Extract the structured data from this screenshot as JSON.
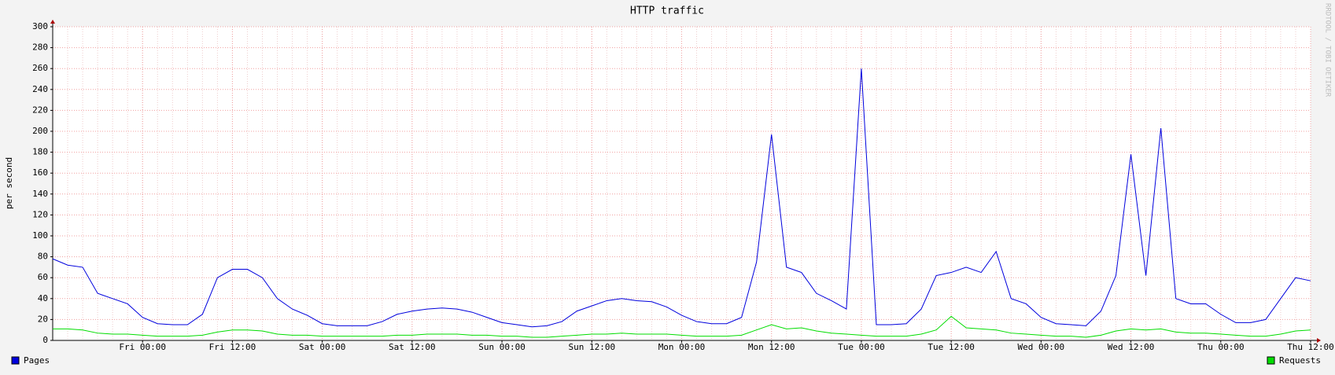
{
  "chart_data": {
    "type": "line",
    "title": "HTTP traffic",
    "y_label": "per second",
    "watermark": "RRDTOOL / TOBI OETIKER",
    "xlim": [
      0,
      84
    ],
    "xticks": [
      {
        "value": 6,
        "label": "Fri 00:00"
      },
      {
        "value": 12,
        "label": "Fri 12:00"
      },
      {
        "value": 18,
        "label": "Sat 00:00"
      },
      {
        "value": 24,
        "label": "Sat 12:00"
      },
      {
        "value": 30,
        "label": "Sun 00:00"
      },
      {
        "value": 36,
        "label": "Sun 12:00"
      },
      {
        "value": 42,
        "label": "Mon 00:00"
      },
      {
        "value": 48,
        "label": "Mon 12:00"
      },
      {
        "value": 54,
        "label": "Tue 00:00"
      },
      {
        "value": 60,
        "label": "Tue 12:00"
      },
      {
        "value": 66,
        "label": "Wed 00:00"
      },
      {
        "value": 72,
        "label": "Wed 12:00"
      },
      {
        "value": 78,
        "label": "Thu 00:00"
      },
      {
        "value": 84,
        "label": "Thu 12:00"
      }
    ],
    "ylim": [
      0,
      300
    ],
    "yticks": [
      0,
      20,
      40,
      60,
      80,
      100,
      120,
      140,
      160,
      180,
      200,
      220,
      240,
      260,
      280,
      300
    ],
    "grid": true,
    "series": [
      {
        "name": "Pages",
        "color": "#0000dd",
        "values": [
          78,
          72,
          70,
          45,
          40,
          35,
          22,
          16,
          15,
          15,
          25,
          60,
          68,
          68,
          60,
          40,
          30,
          24,
          16,
          14,
          14,
          14,
          18,
          25,
          28,
          30,
          31,
          30,
          27,
          22,
          17,
          15,
          13,
          14,
          18,
          28,
          33,
          38,
          40,
          38,
          37,
          32,
          24,
          18,
          16,
          16,
          22,
          75,
          197,
          70,
          65,
          45,
          38,
          30,
          260,
          15,
          15,
          16,
          30,
          62,
          65,
          70,
          65,
          85,
          40,
          35,
          22,
          16,
          15,
          14,
          28,
          62,
          178,
          62,
          203,
          40,
          35,
          35,
          25,
          17,
          17,
          20,
          40,
          60,
          57
        ]
      },
      {
        "name": "Requests",
        "color": "#00dd00",
        "values": [
          11,
          11,
          10,
          7,
          6,
          6,
          5,
          4,
          4,
          4,
          5,
          8,
          10,
          10,
          9,
          6,
          5,
          5,
          4,
          4,
          4,
          4,
          4,
          5,
          5,
          6,
          6,
          6,
          5,
          5,
          4,
          4,
          3,
          3,
          4,
          5,
          6,
          6,
          7,
          6,
          6,
          6,
          5,
          4,
          4,
          4,
          5,
          10,
          15,
          11,
          12,
          9,
          7,
          6,
          5,
          4,
          4,
          4,
          6,
          10,
          23,
          12,
          11,
          10,
          7,
          6,
          5,
          4,
          4,
          3,
          5,
          9,
          11,
          10,
          11,
          8,
          7,
          7,
          6,
          5,
          4,
          4,
          6,
          9,
          10
        ]
      }
    ]
  }
}
